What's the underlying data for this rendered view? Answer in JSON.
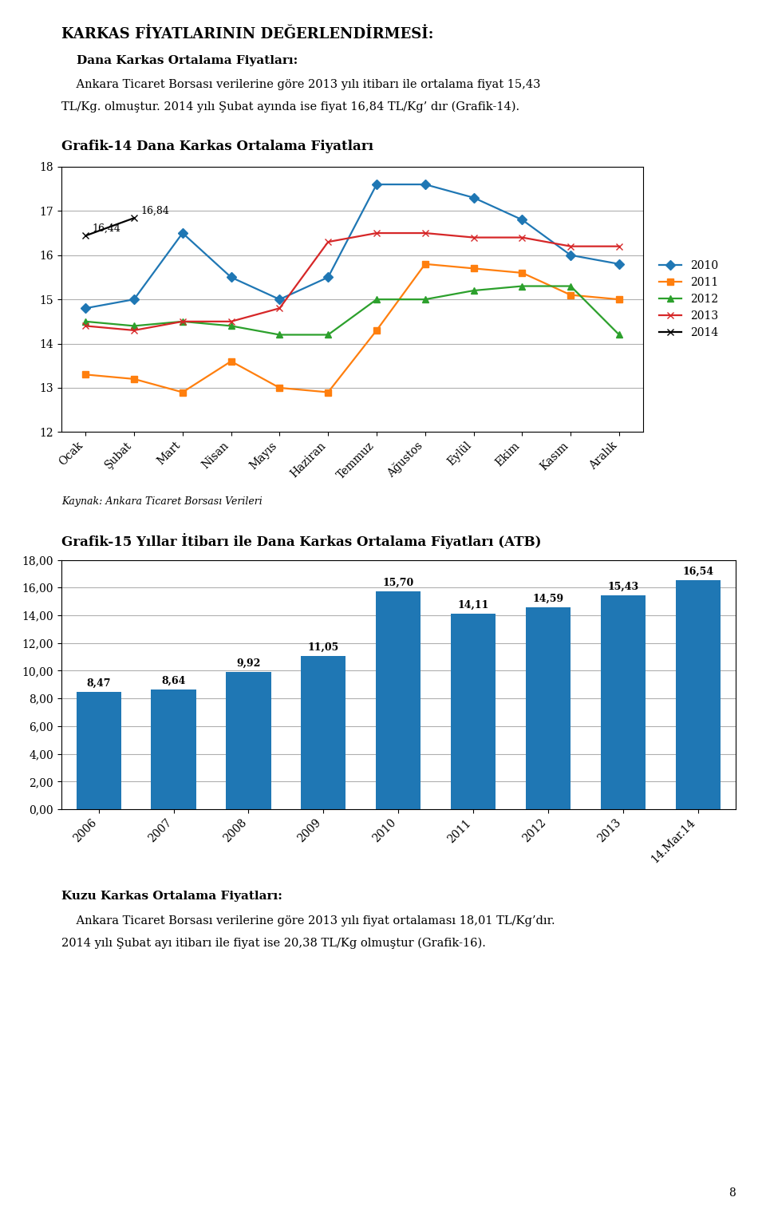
{
  "title": "KARKAS FİYATLARININ DEĞERLENDİRMESİ:",
  "intro": {
    "heading": "Dana Karkas Ortalama Fiyatları:",
    "text": [
      "    Ankara Ticaret Borsası verilerine göre 2013 yılı itibarı ile ortalama fiyat 15,43",
      "TL/Kg. olmuştur. 2014 yılı Şubat ayında ise fiyat 16,84 TL/Kg’ dır (Grafik-14)."
    ]
  },
  "chart_data": [
    {
      "type": "line",
      "title": "Grafik-14 Dana Karkas Ortalama Fiyatları",
      "categories": [
        "Ocak",
        "Şubat",
        "Mart",
        "Nisan",
        "Mayıs",
        "Haziran",
        "Temmuz",
        "Ağustos",
        "Eylül",
        "Ekim",
        "Kasım",
        "Aralık"
      ],
      "series": [
        {
          "name": "2010",
          "marker": "diamond",
          "values": [
            14.8,
            15.0,
            16.5,
            15.5,
            15.0,
            15.5,
            17.6,
            17.6,
            17.3,
            16.8,
            16.0,
            15.8
          ]
        },
        {
          "name": "2011",
          "marker": "square",
          "values": [
            13.3,
            13.2,
            12.9,
            13.6,
            13.0,
            12.9,
            14.3,
            15.8,
            15.7,
            15.6,
            15.1,
            15.0
          ]
        },
        {
          "name": "2012",
          "marker": "triangle",
          "values": [
            14.5,
            14.4,
            14.5,
            14.4,
            14.2,
            14.2,
            15.0,
            15.0,
            15.2,
            15.3,
            15.3,
            14.2
          ]
        },
        {
          "name": "2013",
          "marker": "x",
          "values": [
            14.4,
            14.3,
            14.5,
            14.5,
            14.8,
            16.3,
            16.5,
            16.5,
            16.4,
            16.4,
            16.2,
            16.2
          ]
        },
        {
          "name": "2014",
          "marker": "x",
          "color": "#000000",
          "values": [
            16.44,
            16.84,
            null,
            null,
            null,
            null,
            null,
            null,
            null,
            null,
            null,
            null
          ],
          "value_labels": [
            "16,44",
            "16,84",
            null,
            null,
            null,
            null,
            null,
            null,
            null,
            null,
            null,
            null
          ]
        }
      ],
      "ylim": [
        12,
        18
      ],
      "yticks": [
        12,
        13,
        14,
        15,
        16,
        17,
        18
      ],
      "grid": true,
      "legend": "right",
      "source": "Kaynak: Ankara Ticaret Borsası Verileri"
    },
    {
      "type": "bar",
      "title": "Grafik-15 Yıllar İtibarı ile Dana Karkas Ortalama Fiyatları (ATB)",
      "categories": [
        "2006",
        "2007",
        "2008",
        "2009",
        "2010",
        "2011",
        "2012",
        "2013",
        "14.Mar.14"
      ],
      "values": [
        8.47,
        8.64,
        9.92,
        11.05,
        15.7,
        14.11,
        14.59,
        15.43,
        16.54
      ],
      "value_labels": [
        "8,47",
        "8,64",
        "9,92",
        "11,05",
        "15,70",
        "14,11",
        "14,59",
        "15,43",
        "16,54"
      ],
      "data_labels": true,
      "ylim": [
        0,
        18
      ],
      "yticks": [
        {
          "value": 0.0,
          "label": "0,00"
        },
        {
          "value": 2.0,
          "label": "2,00"
        },
        {
          "value": 4.0,
          "label": "4,00"
        },
        {
          "value": 6.0,
          "label": "6,00"
        },
        {
          "value": 8.0,
          "label": "8,00"
        },
        {
          "value": 10.0,
          "label": "10,00"
        },
        {
          "value": 12.0,
          "label": "12,00"
        },
        {
          "value": 14.0,
          "label": "14,00"
        },
        {
          "value": 16.0,
          "label": "16,00"
        },
        {
          "value": 18.0,
          "label": "18,00"
        }
      ],
      "grid": true
    }
  ],
  "outro": {
    "heading": "Kuzu Karkas Ortalama Fiyatları:",
    "text": [
      "    Ankara Ticaret Borsası verilerine göre 2013 yılı fiyat ortalaması 18,01 TL/Kg’dır.",
      "2014 yılı Şubat ayı itibarı ile fiyat ise 20,38 TL/Kg olmuştur (Grafik-16)."
    ]
  },
  "page_number": "8"
}
